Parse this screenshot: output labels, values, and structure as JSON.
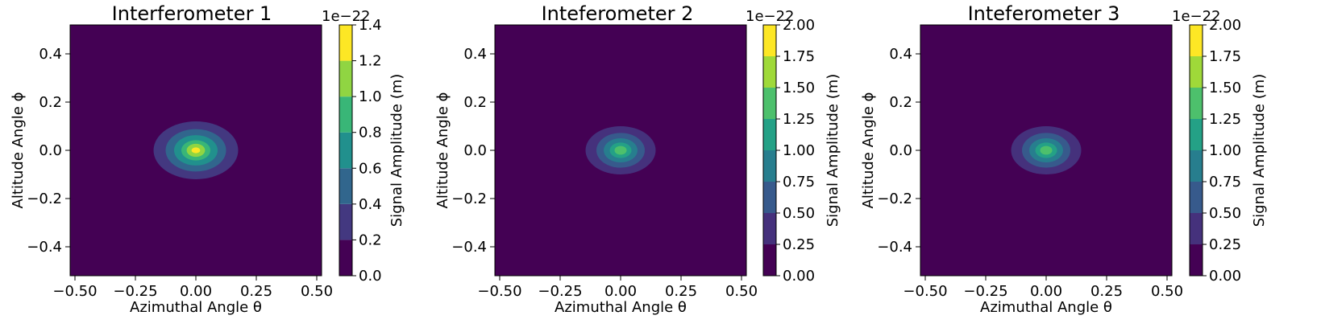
{
  "chart_data": [
    {
      "type": "contourf",
      "title": "Interferometer 1",
      "xlabel": "Azimuthal Angle θ",
      "ylabel": "Altitude Angle ϕ",
      "xlim": [
        -0.52,
        0.52
      ],
      "ylim": [
        -0.52,
        0.52
      ],
      "xticks": [
        "−0.50",
        "−0.25",
        "0.00",
        "0.25",
        "0.50"
      ],
      "xtick_values": [
        -0.5,
        -0.25,
        0.0,
        0.25,
        0.5
      ],
      "yticks": [
        "−0.4",
        "−0.2",
        "0.0",
        "0.2",
        "0.4"
      ],
      "ytick_values": [
        -0.4,
        -0.2,
        0.0,
        0.2,
        0.4
      ],
      "colorbar": {
        "label": "Signal Amplitude (m)",
        "scale_label": "1e−22",
        "levels": [
          0.0,
          0.2,
          0.4,
          0.6,
          0.8,
          1.0,
          1.2,
          1.4
        ],
        "tick_labels": [
          "0.0",
          "0.2",
          "0.4",
          "0.6",
          "0.8",
          "1.0",
          "1.2",
          "1.4"
        ]
      },
      "peak": {
        "x": 0.0,
        "y": 0.0,
        "value": 1.35
      },
      "contours": [
        {
          "level": 0.2,
          "rx": 0.175,
          "ry": 0.12
        },
        {
          "level": 0.4,
          "rx": 0.125,
          "ry": 0.088
        },
        {
          "level": 0.6,
          "rx": 0.09,
          "ry": 0.063
        },
        {
          "level": 0.8,
          "rx": 0.06,
          "ry": 0.042
        },
        {
          "level": 1.0,
          "rx": 0.038,
          "ry": 0.027
        },
        {
          "level": 1.2,
          "rx": 0.018,
          "ry": 0.012
        }
      ]
    },
    {
      "type": "contourf",
      "title": "Inteferometer 2",
      "xlabel": "Azimuthal Angle θ",
      "ylabel": "Altitude Angle ϕ",
      "xlim": [
        -0.52,
        0.52
      ],
      "ylim": [
        -0.52,
        0.52
      ],
      "xticks": [
        "−0.50",
        "−0.25",
        "0.00",
        "0.25",
        "0.50"
      ],
      "xtick_values": [
        -0.5,
        -0.25,
        0.0,
        0.25,
        0.5
      ],
      "yticks": [
        "−0.4",
        "−0.2",
        "0.0",
        "0.2",
        "0.4"
      ],
      "ytick_values": [
        -0.4,
        -0.2,
        0.0,
        0.2,
        0.4
      ],
      "colorbar": {
        "label": "Signal Amplitude (m)",
        "scale_label": "1e−22",
        "levels": [
          0.0,
          0.25,
          0.5,
          0.75,
          1.0,
          1.25,
          1.5,
          1.75,
          2.0
        ],
        "tick_labels": [
          "0.00",
          "0.25",
          "0.50",
          "0.75",
          "1.00",
          "1.25",
          "1.50",
          "1.75",
          "2.00"
        ]
      },
      "peak": {
        "x": 0.0,
        "y": 0.0,
        "value": 1.6
      },
      "contours": [
        {
          "level": 0.25,
          "rx": 0.145,
          "ry": 0.1
        },
        {
          "level": 0.5,
          "rx": 0.1,
          "ry": 0.072
        },
        {
          "level": 0.75,
          "rx": 0.07,
          "ry": 0.05
        },
        {
          "level": 1.0,
          "rx": 0.045,
          "ry": 0.032
        },
        {
          "level": 1.25,
          "rx": 0.025,
          "ry": 0.018
        }
      ]
    },
    {
      "type": "contourf",
      "title": "Inteferometer 3",
      "xlabel": "Azimuthal Angle θ",
      "ylabel": "Altitude Angle ϕ",
      "xlim": [
        -0.52,
        0.52
      ],
      "ylim": [
        -0.52,
        0.52
      ],
      "xticks": [
        "−0.50",
        "−0.25",
        "0.00",
        "0.25",
        "0.50"
      ],
      "xtick_values": [
        -0.5,
        -0.25,
        0.0,
        0.25,
        0.5
      ],
      "yticks": [
        "−0.4",
        "−0.2",
        "0.0",
        "0.2",
        "0.4"
      ],
      "ytick_values": [
        -0.4,
        -0.2,
        0.0,
        0.2,
        0.4
      ],
      "colorbar": {
        "label": "Signal Amplitude (m)",
        "scale_label": "1e−22",
        "levels": [
          0.0,
          0.25,
          0.5,
          0.75,
          1.0,
          1.25,
          1.5,
          1.75,
          2.0
        ],
        "tick_labels": [
          "0.00",
          "0.25",
          "0.50",
          "0.75",
          "1.00",
          "1.25",
          "1.50",
          "1.75",
          "2.00"
        ]
      },
      "peak": {
        "x": 0.0,
        "y": 0.0,
        "value": 1.6
      },
      "contours": [
        {
          "level": 0.25,
          "rx": 0.145,
          "ry": 0.1
        },
        {
          "level": 0.5,
          "rx": 0.1,
          "ry": 0.072
        },
        {
          "level": 0.75,
          "rx": 0.07,
          "ry": 0.05
        },
        {
          "level": 1.0,
          "rx": 0.045,
          "ry": 0.032
        },
        {
          "level": 1.25,
          "rx": 0.025,
          "ry": 0.018
        }
      ]
    }
  ]
}
